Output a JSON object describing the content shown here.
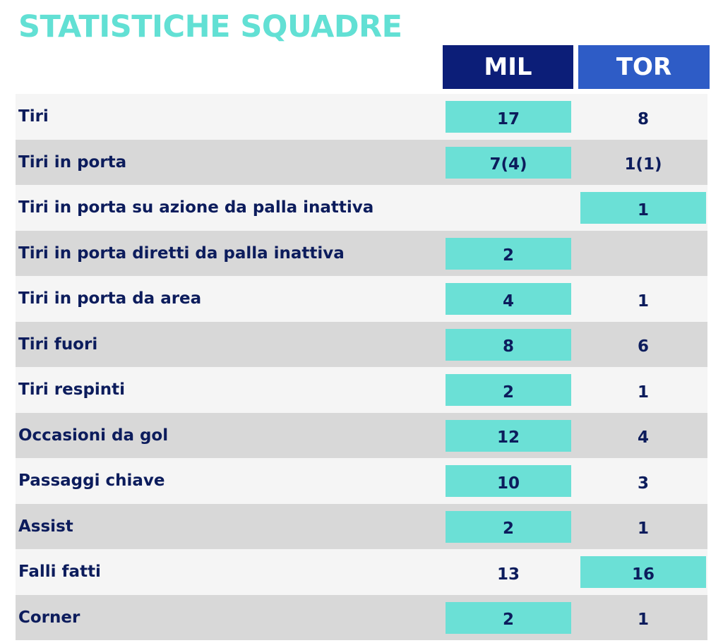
{
  "title": "STATISTICHE SQUADRE",
  "teams": {
    "home": "MIL",
    "away": "TOR"
  },
  "colors": {
    "title": "#62e0d4",
    "home_header": "#0c1e78",
    "away_header": "#2e5cc6",
    "highlight": "#6be0d6",
    "text": "#0c1c5c",
    "row_light": "#f5f5f5",
    "row_dark": "#d8d8d8"
  },
  "rows": [
    {
      "label": "Tiri",
      "home": "17",
      "away": "8",
      "highlight": "home"
    },
    {
      "label": "Tiri in porta",
      "home": "7(4)",
      "away": "1(1)",
      "highlight": "home"
    },
    {
      "label": "Tiri in porta su azione da palla inattiva",
      "home": "",
      "away": "1",
      "highlight": "away"
    },
    {
      "label": "Tiri in porta diretti da palla inattiva",
      "home": "2",
      "away": "",
      "highlight": "home"
    },
    {
      "label": "Tiri in porta da area",
      "home": "4",
      "away": "1",
      "highlight": "home"
    },
    {
      "label": "Tiri fuori",
      "home": "8",
      "away": "6",
      "highlight": "home"
    },
    {
      "label": "Tiri respinti",
      "home": "2",
      "away": "1",
      "highlight": "home"
    },
    {
      "label": "Occasioni da gol",
      "home": "12",
      "away": "4",
      "highlight": "home"
    },
    {
      "label": "Passaggi chiave",
      "home": "10",
      "away": "3",
      "highlight": "home"
    },
    {
      "label": "Assist",
      "home": "2",
      "away": "1",
      "highlight": "home"
    },
    {
      "label": "Falli fatti",
      "home": "13",
      "away": "16",
      "highlight": "away"
    },
    {
      "label": "Corner",
      "home": "2",
      "away": "1",
      "highlight": "home"
    }
  ]
}
